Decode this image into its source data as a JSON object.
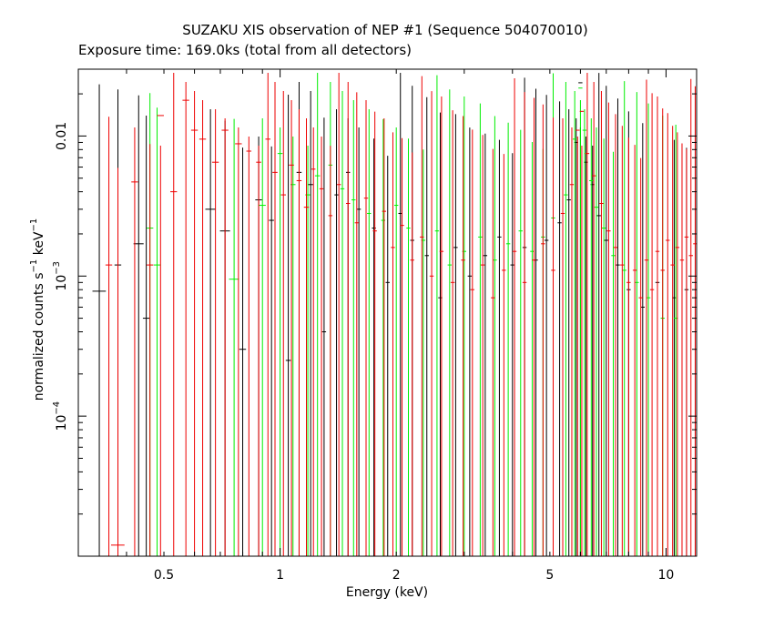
{
  "chart_data": {
    "type": "scatter",
    "title": "SUZAKU XIS observation of NEP #1 (Sequence 504070010)",
    "subtitle": "Exposure time: 169.0ks (total from all detectors)",
    "xlabel": "Energy (keV)",
    "ylabel_parts": {
      "base": "normalized counts s",
      "exp1": "−1",
      "mid": " keV",
      "exp2": "−1"
    },
    "xscale": "log",
    "yscale": "log",
    "xlim": [
      0.3,
      12
    ],
    "ylim": [
      1e-05,
      0.03
    ],
    "grid": false,
    "legend": "none",
    "x_ticks": [
      {
        "value": 0.5,
        "label": "0.5"
      },
      {
        "value": 1,
        "label": "1"
      },
      {
        "value": 2,
        "label": "2"
      },
      {
        "value": 5,
        "label": "5"
      },
      {
        "value": 10,
        "label": "10"
      }
    ],
    "y_ticks": [
      {
        "value": 0.01,
        "label": "0.01",
        "exp": ""
      },
      {
        "value": 0.001,
        "label": "10",
        "exp": "−3"
      },
      {
        "value": 0.0001,
        "label": "10",
        "exp": "−4"
      }
    ],
    "series": [
      {
        "color": "#000000",
        "points": [
          [
            0.34,
            0.00078,
            0.04
          ],
          [
            0.38,
            0.0012,
            0.02
          ],
          [
            0.43,
            0.0017,
            0.03
          ],
          [
            0.45,
            0.0005,
            0.02
          ],
          [
            0.66,
            0.003,
            0.03
          ],
          [
            0.72,
            0.0021,
            0.03
          ],
          [
            0.8,
            0.0003,
            0.02
          ],
          [
            0.88,
            0.0035,
            0.02
          ],
          [
            0.95,
            0.0025,
            0.015
          ],
          [
            1.05,
            0.00025,
            0.015
          ],
          [
            1.12,
            0.0055,
            0.015
          ],
          [
            1.2,
            0.0045,
            0.015
          ],
          [
            1.3,
            0.0004,
            0.012
          ],
          [
            1.4,
            0.0038,
            0.012
          ],
          [
            1.5,
            0.0055,
            0.012
          ],
          [
            1.6,
            0.003,
            0.012
          ],
          [
            1.75,
            0.0022,
            0.012
          ],
          [
            1.9,
            0.0009,
            0.012
          ],
          [
            2.05,
            0.0028,
            0.012
          ],
          [
            2.2,
            0.0018,
            0.012
          ],
          [
            2.4,
            0.0014,
            0.012
          ],
          [
            2.6,
            0.0007,
            0.012
          ],
          [
            2.85,
            0.0016,
            0.012
          ],
          [
            3.1,
            0.001,
            0.012
          ],
          [
            3.4,
            0.0014,
            0.012
          ],
          [
            3.7,
            0.0019,
            0.012
          ],
          [
            4.0,
            0.0012,
            0.012
          ],
          [
            4.3,
            0.0016,
            0.012
          ],
          [
            4.6,
            0.0013,
            0.012
          ],
          [
            4.9,
            0.0018,
            0.012
          ],
          [
            5.3,
            0.0024,
            0.012
          ],
          [
            5.6,
            0.0035,
            0.012
          ],
          [
            5.85,
            0.009,
            0.012
          ],
          [
            6.0,
            0.024,
            0.012
          ],
          [
            6.2,
            0.0065,
            0.012
          ],
          [
            6.45,
            0.0045,
            0.012
          ],
          [
            6.7,
            0.0027,
            0.012
          ],
          [
            7.0,
            0.0018,
            0.012
          ],
          [
            7.5,
            0.0012,
            0.012
          ],
          [
            8.0,
            0.0008,
            0.012
          ],
          [
            8.7,
            0.0006,
            0.012
          ],
          [
            9.5,
            0.0009,
            0.012
          ],
          [
            10.5,
            0.0007,
            0.012
          ],
          [
            11.3,
            0.0008,
            0.012
          ]
        ]
      },
      {
        "color": "#00ee00",
        "points": [
          [
            0.46,
            0.0022,
            0.02
          ],
          [
            0.48,
            0.0012,
            0.02
          ],
          [
            0.76,
            0.00095,
            0.03
          ],
          [
            0.9,
            0.0032,
            0.02
          ],
          [
            1.0,
            0.0075,
            0.015
          ],
          [
            1.08,
            0.0045,
            0.015
          ],
          [
            1.18,
            0.0038,
            0.015
          ],
          [
            1.25,
            0.0052,
            0.015
          ],
          [
            1.35,
            0.0062,
            0.012
          ],
          [
            1.45,
            0.0042,
            0.012
          ],
          [
            1.55,
            0.0035,
            0.012
          ],
          [
            1.7,
            0.0028,
            0.012
          ],
          [
            1.85,
            0.0025,
            0.012
          ],
          [
            2.0,
            0.0032,
            0.012
          ],
          [
            2.15,
            0.0022,
            0.012
          ],
          [
            2.35,
            0.0018,
            0.012
          ],
          [
            2.55,
            0.0021,
            0.012
          ],
          [
            2.75,
            0.0012,
            0.012
          ],
          [
            3.0,
            0.0015,
            0.012
          ],
          [
            3.3,
            0.0019,
            0.012
          ],
          [
            3.6,
            0.0013,
            0.012
          ],
          [
            3.9,
            0.0017,
            0.012
          ],
          [
            4.2,
            0.0021,
            0.012
          ],
          [
            4.5,
            0.0015,
            0.012
          ],
          [
            4.8,
            0.0019,
            0.012
          ],
          [
            5.1,
            0.0026,
            0.012
          ],
          [
            5.5,
            0.0038,
            0.012
          ],
          [
            5.8,
            0.0095,
            0.012
          ],
          [
            6.0,
            0.022,
            0.012
          ],
          [
            6.15,
            0.011,
            0.012
          ],
          [
            6.4,
            0.0048,
            0.012
          ],
          [
            6.6,
            0.0031,
            0.012
          ],
          [
            6.9,
            0.0022,
            0.012
          ],
          [
            7.3,
            0.0014,
            0.012
          ],
          [
            7.8,
            0.0011,
            0.012
          ],
          [
            8.4,
            0.0009,
            0.012
          ],
          [
            9.0,
            0.0007,
            0.012
          ],
          [
            9.8,
            0.0005,
            0.012
          ],
          [
            10.6,
            0.0005,
            0.012
          ]
        ]
      },
      {
        "color": "#ee0000",
        "points": [
          [
            0.36,
            0.0012,
            0.02
          ],
          [
            0.38,
            1.2e-05,
            0.04
          ],
          [
            0.42,
            0.0047,
            0.02
          ],
          [
            0.46,
            0.0012,
            0.02
          ],
          [
            0.49,
            0.014,
            0.02
          ],
          [
            0.53,
            0.004,
            0.02
          ],
          [
            0.57,
            0.018,
            0.02
          ],
          [
            0.6,
            0.011,
            0.02
          ],
          [
            0.63,
            0.0095,
            0.02
          ],
          [
            0.68,
            0.0065,
            0.02
          ],
          [
            0.72,
            0.011,
            0.02
          ],
          [
            0.78,
            0.0088,
            0.02
          ],
          [
            0.83,
            0.0078,
            0.015
          ],
          [
            0.88,
            0.0065,
            0.015
          ],
          [
            0.93,
            0.0095,
            0.015
          ],
          [
            0.97,
            0.0055,
            0.015
          ],
          [
            1.02,
            0.0038,
            0.015
          ],
          [
            1.07,
            0.0062,
            0.015
          ],
          [
            1.12,
            0.0048,
            0.015
          ],
          [
            1.17,
            0.0031,
            0.015
          ],
          [
            1.22,
            0.0058,
            0.012
          ],
          [
            1.28,
            0.0042,
            0.012
          ],
          [
            1.35,
            0.0027,
            0.012
          ],
          [
            1.42,
            0.0045,
            0.012
          ],
          [
            1.5,
            0.0033,
            0.012
          ],
          [
            1.58,
            0.0024,
            0.012
          ],
          [
            1.67,
            0.0036,
            0.012
          ],
          [
            1.76,
            0.0021,
            0.012
          ],
          [
            1.86,
            0.0029,
            0.012
          ],
          [
            1.96,
            0.0016,
            0.012
          ],
          [
            2.07,
            0.0023,
            0.012
          ],
          [
            2.2,
            0.0013,
            0.012
          ],
          [
            2.33,
            0.0019,
            0.012
          ],
          [
            2.47,
            0.001,
            0.012
          ],
          [
            2.62,
            0.0015,
            0.012
          ],
          [
            2.8,
            0.0009,
            0.012
          ],
          [
            2.98,
            0.0013,
            0.012
          ],
          [
            3.15,
            0.0008,
            0.012
          ],
          [
            3.35,
            0.0012,
            0.012
          ],
          [
            3.56,
            0.0007,
            0.012
          ],
          [
            3.8,
            0.0011,
            0.012
          ],
          [
            4.05,
            0.0015,
            0.012
          ],
          [
            4.3,
            0.0009,
            0.012
          ],
          [
            4.55,
            0.0013,
            0.012
          ],
          [
            4.8,
            0.0017,
            0.012
          ],
          [
            5.1,
            0.0011,
            0.012
          ],
          [
            5.4,
            0.0028,
            0.012
          ],
          [
            5.7,
            0.0045,
            0.012
          ],
          [
            5.9,
            0.011,
            0.012
          ],
          [
            6.05,
            0.015,
            0.012
          ],
          [
            6.25,
            0.0075,
            0.012
          ],
          [
            6.5,
            0.0052,
            0.012
          ],
          [
            6.8,
            0.0033,
            0.012
          ],
          [
            7.1,
            0.0021,
            0.012
          ],
          [
            7.4,
            0.0016,
            0.012
          ],
          [
            7.7,
            0.0012,
            0.012
          ],
          [
            8.0,
            0.0009,
            0.012
          ],
          [
            8.3,
            0.0011,
            0.012
          ],
          [
            8.6,
            0.0007,
            0.012
          ],
          [
            8.9,
            0.0013,
            0.012
          ],
          [
            9.2,
            0.0008,
            0.012
          ],
          [
            9.5,
            0.0015,
            0.012
          ],
          [
            9.8,
            0.0011,
            0.012
          ],
          [
            10.1,
            0.0018,
            0.012
          ],
          [
            10.4,
            0.0012,
            0.012
          ],
          [
            10.7,
            0.0016,
            0.012
          ],
          [
            11.0,
            0.0013,
            0.012
          ],
          [
            11.3,
            0.0019,
            0.012
          ],
          [
            11.6,
            0.0014,
            0.012
          ],
          [
            11.9,
            0.0017,
            0.012
          ]
        ]
      }
    ]
  }
}
